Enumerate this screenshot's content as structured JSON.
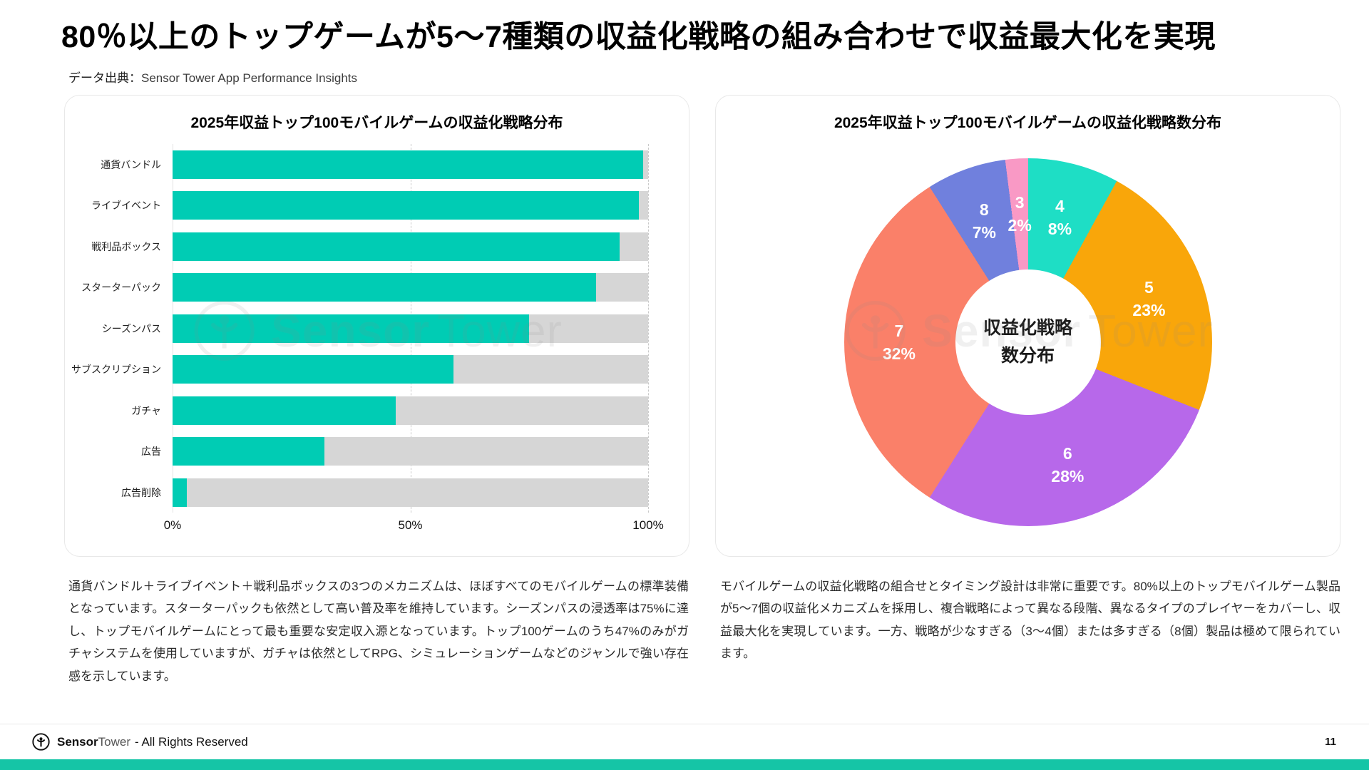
{
  "header": {
    "title": "80％以上のトップゲームが5〜7種類の収益化戦略の組み合わせで収益最大化を実現",
    "source_label": "データ出典：",
    "source_value": "Sensor Tower App Performance Insights"
  },
  "chart_data": [
    {
      "type": "bar",
      "orientation": "horizontal",
      "title": "2025年収益トップ100モバイルゲームの収益化戦略分布",
      "categories": [
        "通貨バンドル",
        "ライブイベント",
        "戦利品ボックス",
        "スターターパック",
        "シーズンパス",
        "サブスクリプション",
        "ガチャ",
        "広告",
        "広告削除"
      ],
      "values": [
        99,
        98,
        94,
        89,
        75,
        59,
        47,
        32,
        3
      ],
      "unit": "%",
      "xlim": [
        0,
        100
      ],
      "x_ticks": [
        "0%",
        "50%",
        "100%"
      ],
      "bar_color": "#00ccb4",
      "track_color": "#d6d6d6",
      "grid": "dashed vertical lines at 50% and 100%"
    },
    {
      "type": "pie",
      "subtype": "donut",
      "title": "2025年収益トップ100モバイルゲームの収益化戦略数分布",
      "center_label": [
        "収益化戦略",
        "数分布"
      ],
      "hole_ratio": 0.395,
      "start": "12 o'clock, clockwise",
      "slices": [
        {
          "label": "4",
          "value": 8,
          "pct_label": "8%",
          "color": "#1edec5"
        },
        {
          "label": "5",
          "value": 23,
          "pct_label": "23%",
          "color": "#f9a60a"
        },
        {
          "label": "6",
          "value": 28,
          "pct_label": "28%",
          "color": "#b768ea"
        },
        {
          "label": "7",
          "value": 32,
          "pct_label": "32%",
          "color": "#fa8069"
        },
        {
          "label": "8",
          "value": 7,
          "pct_label": "7%",
          "color": "#7080dd"
        },
        {
          "label": "3",
          "value": 2,
          "pct_label": "2%",
          "color": "#f999c5"
        }
      ]
    }
  ],
  "captions": {
    "left": "通貨バンドル＋ライブイベント＋戦利品ボックスの3つのメカニズムは、ほぼすべてのモバイルゲームの標準装備となっています。スターターパックも依然として高い普及率を維持しています。シーズンパスの浸透率は75%に達し、トップモバイルゲームにとって最も重要な安定収入源となっています。トップ100ゲームのうち47%のみがガチャシステムを使用していますが、ガチャは依然としてRPG、シミュレーションゲームなどのジャンルで強い存在感を示しています。",
    "right": "モバイルゲームの収益化戦略の組合せとタイミング設計は非常に重要です。80%以上のトップモバイルゲーム製品が5〜7個の収益化メカニズムを採用し、複合戦略によって異なる段階、異なるタイプのプレイヤーをカバーし、収益最大化を実現しています。一方、戦略が少なすぎる（3〜4個）または多すぎる（8個）製品は極めて限られています。"
  },
  "watermark": {
    "text_bold": "Sensor",
    "text_light": "Tower"
  },
  "footer": {
    "brand_bold": "Sensor",
    "brand_light": "Tower",
    "rights": "- All Rights Reserved",
    "page_number": "11"
  },
  "colors": {
    "accent_bottom_bar": "#15c5a6",
    "bar_teal": "#00ccb4",
    "bar_track_gray": "#d6d6d6"
  }
}
